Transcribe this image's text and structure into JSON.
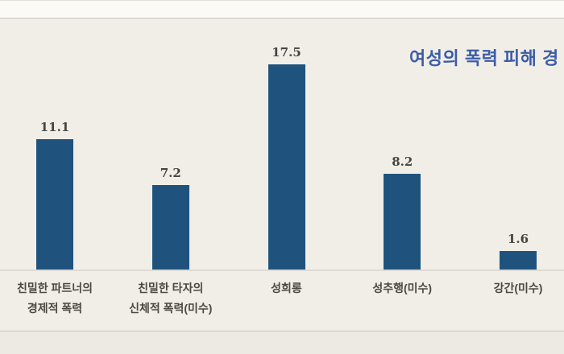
{
  "title": {
    "text": "여성의 폭력 피해 경",
    "color": "#3B5CA8"
  },
  "chart_data": {
    "type": "bar",
    "categories": [
      "친밀한 파트너의 경제적 폭력",
      "친밀한 타자의 신체적 폭력(미수)",
      "성희롱",
      "성추행(미수)",
      "강간(미수)"
    ],
    "category_lines": [
      [
        "친밀한 파트너의",
        "경제적 폭력"
      ],
      [
        "친밀한 타자의",
        "신체적 폭력(미수)"
      ],
      [
        "성희롱"
      ],
      [
        "성추행(미수)"
      ],
      [
        "강간(미수)"
      ]
    ],
    "values": [
      11.1,
      7.2,
      17.5,
      8.2,
      1.6
    ],
    "value_labels": [
      "11.1",
      "7.2",
      "17.5",
      "8.2",
      "1.6"
    ],
    "title": "여성의 폭력 피해 경",
    "xlabel": "",
    "ylabel": "",
    "ylim": [
      0,
      20
    ],
    "grid": false,
    "legend": false,
    "bar_color": "#1F537E",
    "value_label_color": "#474340",
    "category_label_color": "#4C4843",
    "background_color": "#F1EEE7"
  }
}
